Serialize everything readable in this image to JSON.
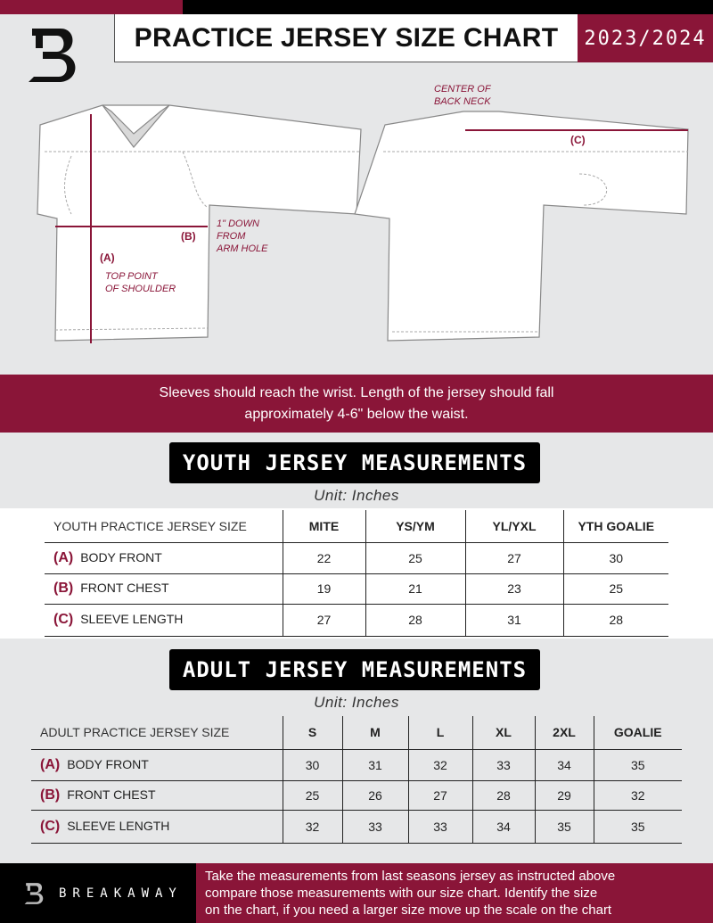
{
  "header": {
    "title": "PRACTICE JERSEY SIZE CHART",
    "season": "2023/2024",
    "logo_letter": "B"
  },
  "diagram": {
    "front": {
      "label_a": "(A)",
      "label_b": "(B)",
      "note_b": [
        "1\" DOWN",
        "FROM",
        "ARM HOLE"
      ],
      "note_a": [
        "TOP POINT",
        "OF SHOULDER"
      ]
    },
    "back": {
      "label_c": "(C)",
      "note_c": [
        "CENTER OF",
        "BACK NECK"
      ]
    }
  },
  "instructions": [
    "Sleeves should reach the wrist. Length of the jersey should fall",
    "approximately 4-6\" below the waist."
  ],
  "youth": {
    "title": "YOUTH JERSEY MEASUREMENTS",
    "unit": "Unit: Inches",
    "header": "YOUTH PRACTICE JERSEY SIZE",
    "sizes": [
      "MITE",
      "YS/YM",
      "YL/YXL",
      "YTH GOALIE"
    ],
    "rows": [
      {
        "code": "(A)",
        "name": "BODY FRONT",
        "values": [
          "22",
          "25",
          "27",
          "30"
        ]
      },
      {
        "code": "(B)",
        "name": "FRONT CHEST",
        "values": [
          "19",
          "21",
          "23",
          "25"
        ]
      },
      {
        "code": "(C)",
        "name": "SLEEVE LENGTH",
        "values": [
          "27",
          "28",
          "31",
          "28"
        ]
      }
    ]
  },
  "adult": {
    "title": "ADULT JERSEY MEASUREMENTS",
    "unit": "Unit: Inches",
    "header": "ADULT PRACTICE JERSEY SIZE",
    "sizes": [
      "S",
      "M",
      "L",
      "XL",
      "2XL",
      "GOALIE"
    ],
    "rows": [
      {
        "code": "(A)",
        "name": "BODY FRONT",
        "values": [
          "30",
          "31",
          "32",
          "33",
          "34",
          "35"
        ]
      },
      {
        "code": "(B)",
        "name": "FRONT CHEST",
        "values": [
          "25",
          "26",
          "27",
          "28",
          "29",
          "32"
        ]
      },
      {
        "code": "(C)",
        "name": "SLEEVE LENGTH",
        "values": [
          "32",
          "33",
          "33",
          "34",
          "35",
          "35"
        ]
      }
    ]
  },
  "footer": {
    "brand": "BREAKAWAY",
    "text": [
      "Take the measurements from last seasons jersey as instructed above",
      "compare those measurements  with our size chart. Identify the size",
      "on the chart, if you need a larger size move up the scale on the chart"
    ]
  },
  "colors": {
    "accent": "#8a1538",
    "background": "#e6e7e8",
    "dark": "#000000"
  }
}
